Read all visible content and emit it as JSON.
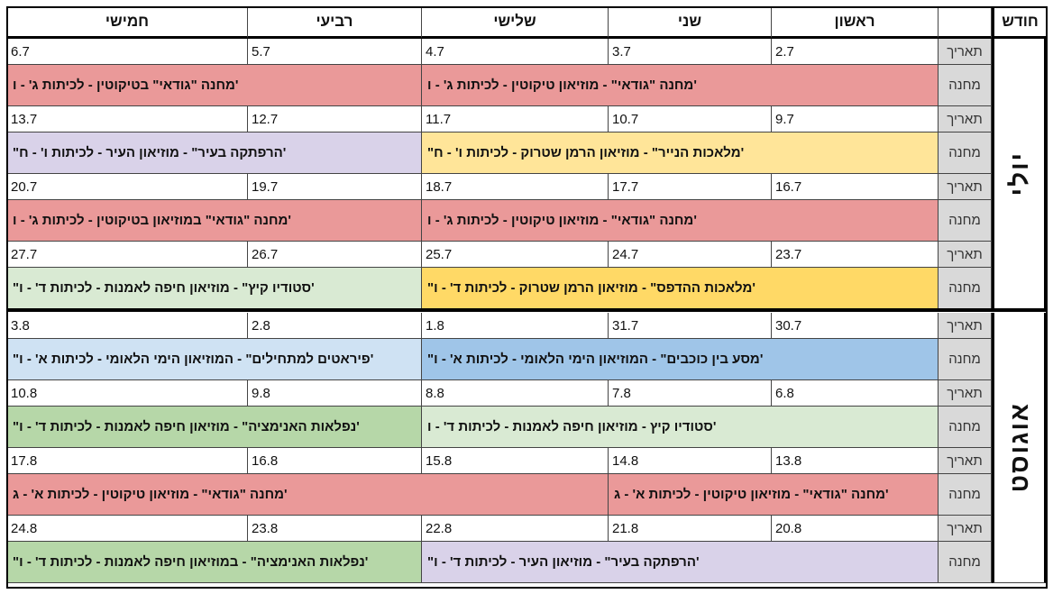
{
  "header": {
    "month": "חודש",
    "days": [
      "ראשון",
      "שני",
      "שלישי",
      "רביעי",
      "חמישי"
    ]
  },
  "row_labels": {
    "date": "תאריך",
    "activity": "מחנה"
  },
  "colors": {
    "red": "#ea9999",
    "purple": "#d9d2e9",
    "yellow": "#ffe599",
    "yellow_strong": "#ffd966",
    "green_light": "#d9ead3",
    "green": "#b6d7a8",
    "blue": "#9fc5e8",
    "blue_light": "#cfe2f3"
  },
  "months": [
    {
      "name": "יולי",
      "weeks": [
        {
          "dates": [
            "2.7",
            "3.7",
            "4.7",
            "5.7",
            "6.7"
          ],
          "activities": [
            {
              "text": "מחנה \"גודאי\" - מוזיאון טיקוטין - לכיתות ג' - ו'",
              "span": 3,
              "color": "red"
            },
            {
              "text": "מחנה \"גודאי\" בטיקוטין - לכיתות ג' - ו'",
              "span": 2,
              "color": "red"
            }
          ]
        },
        {
          "dates": [
            "9.7",
            "10.7",
            "11.7",
            "12.7",
            "13.7"
          ],
          "activities": [
            {
              "text": "\"מלאכות הנייר\" - מוזיאון הרמן שטרוק - לכיתות ו' - ח'",
              "span": 3,
              "color": "yellow"
            },
            {
              "text": "\"הרפתקה בעיר\" - מוזיאון העיר - לכיתות ו' - ח'",
              "span": 2,
              "color": "purple"
            }
          ]
        },
        {
          "dates": [
            "16.7",
            "17.7",
            "18.7",
            "19.7",
            "20.7"
          ],
          "activities": [
            {
              "text": "מחנה \"גודאי\" - מוזיאון טיקוטין - לכיתות ג' - ו'",
              "span": 3,
              "color": "red"
            },
            {
              "text": "מחנה \"גודאי\" במוזיאון בטיקוטין - לכיתות ג' - ו'",
              "span": 2,
              "color": "red"
            }
          ]
        },
        {
          "dates": [
            "23.7",
            "24.7",
            "25.7",
            "26.7",
            "27.7"
          ],
          "activities": [
            {
              "text": "\"מלאכות ההדפס\" - מוזיאון הרמן שטרוק - לכיתות ד' - ו'",
              "span": 3,
              "color": "yellow_strong"
            },
            {
              "text": "\"סטודיו קיץ\" - מוזיאון חיפה לאמנות - לכיתות ד' - ו'",
              "span": 2,
              "color": "green_light"
            }
          ]
        }
      ]
    },
    {
      "name": "אוגוסט",
      "weeks": [
        {
          "dates": [
            "30.7",
            "31.7",
            "1.8",
            "2.8",
            "3.8"
          ],
          "activities": [
            {
              "text": "\"מסע בין כוכבים\" - המוזיאון הימי הלאומי - לכיתות א' - ו'",
              "span": 3,
              "color": "blue"
            },
            {
              "text": "\"פיראטים למתחילים\" - המוזיאון הימי הלאומי - לכיתות א' - ו'",
              "span": 2,
              "color": "blue_light"
            }
          ]
        },
        {
          "dates": [
            "6.8",
            "7.8",
            "8.8",
            "9.8",
            "10.8"
          ],
          "activities": [
            {
              "text": "סטודיו קיץ - מוזיאון חיפה לאמנות - לכיתות ד' - ו'",
              "span": 3,
              "color": "green_light"
            },
            {
              "text": "\"נפלאות האנימציה\" - מוזיאון חיפה לאמנות - לכיתות ד' - ו'",
              "span": 2,
              "color": "green"
            }
          ]
        },
        {
          "dates": [
            "13.8",
            "14.8",
            "15.8",
            "16.8",
            "17.8"
          ],
          "activities": [
            {
              "text": "מחנה \"גודאי\" - מוזיאון טיקוטין - לכיתות א' - ג'",
              "span": 2,
              "color": "red"
            },
            {
              "text": "מחנה \"גודאי\" - מוזיאון טיקוטין - לכיתות א' - ג'",
              "span": 3,
              "color": "red"
            }
          ]
        },
        {
          "dates": [
            "20.8",
            "21.8",
            "22.8",
            "23.8",
            "24.8"
          ],
          "activities": [
            {
              "text": "\"הרפתקה בעיר\" - מוזיאון העיר - לכיתות ד' - ו'",
              "span": 3,
              "color": "purple"
            },
            {
              "text": "\"נפלאות האנימציה\" - במוזיאון חיפה לאמנות - לכיתות ד' - ו'",
              "span": 2,
              "color": "green"
            }
          ]
        }
      ]
    }
  ]
}
